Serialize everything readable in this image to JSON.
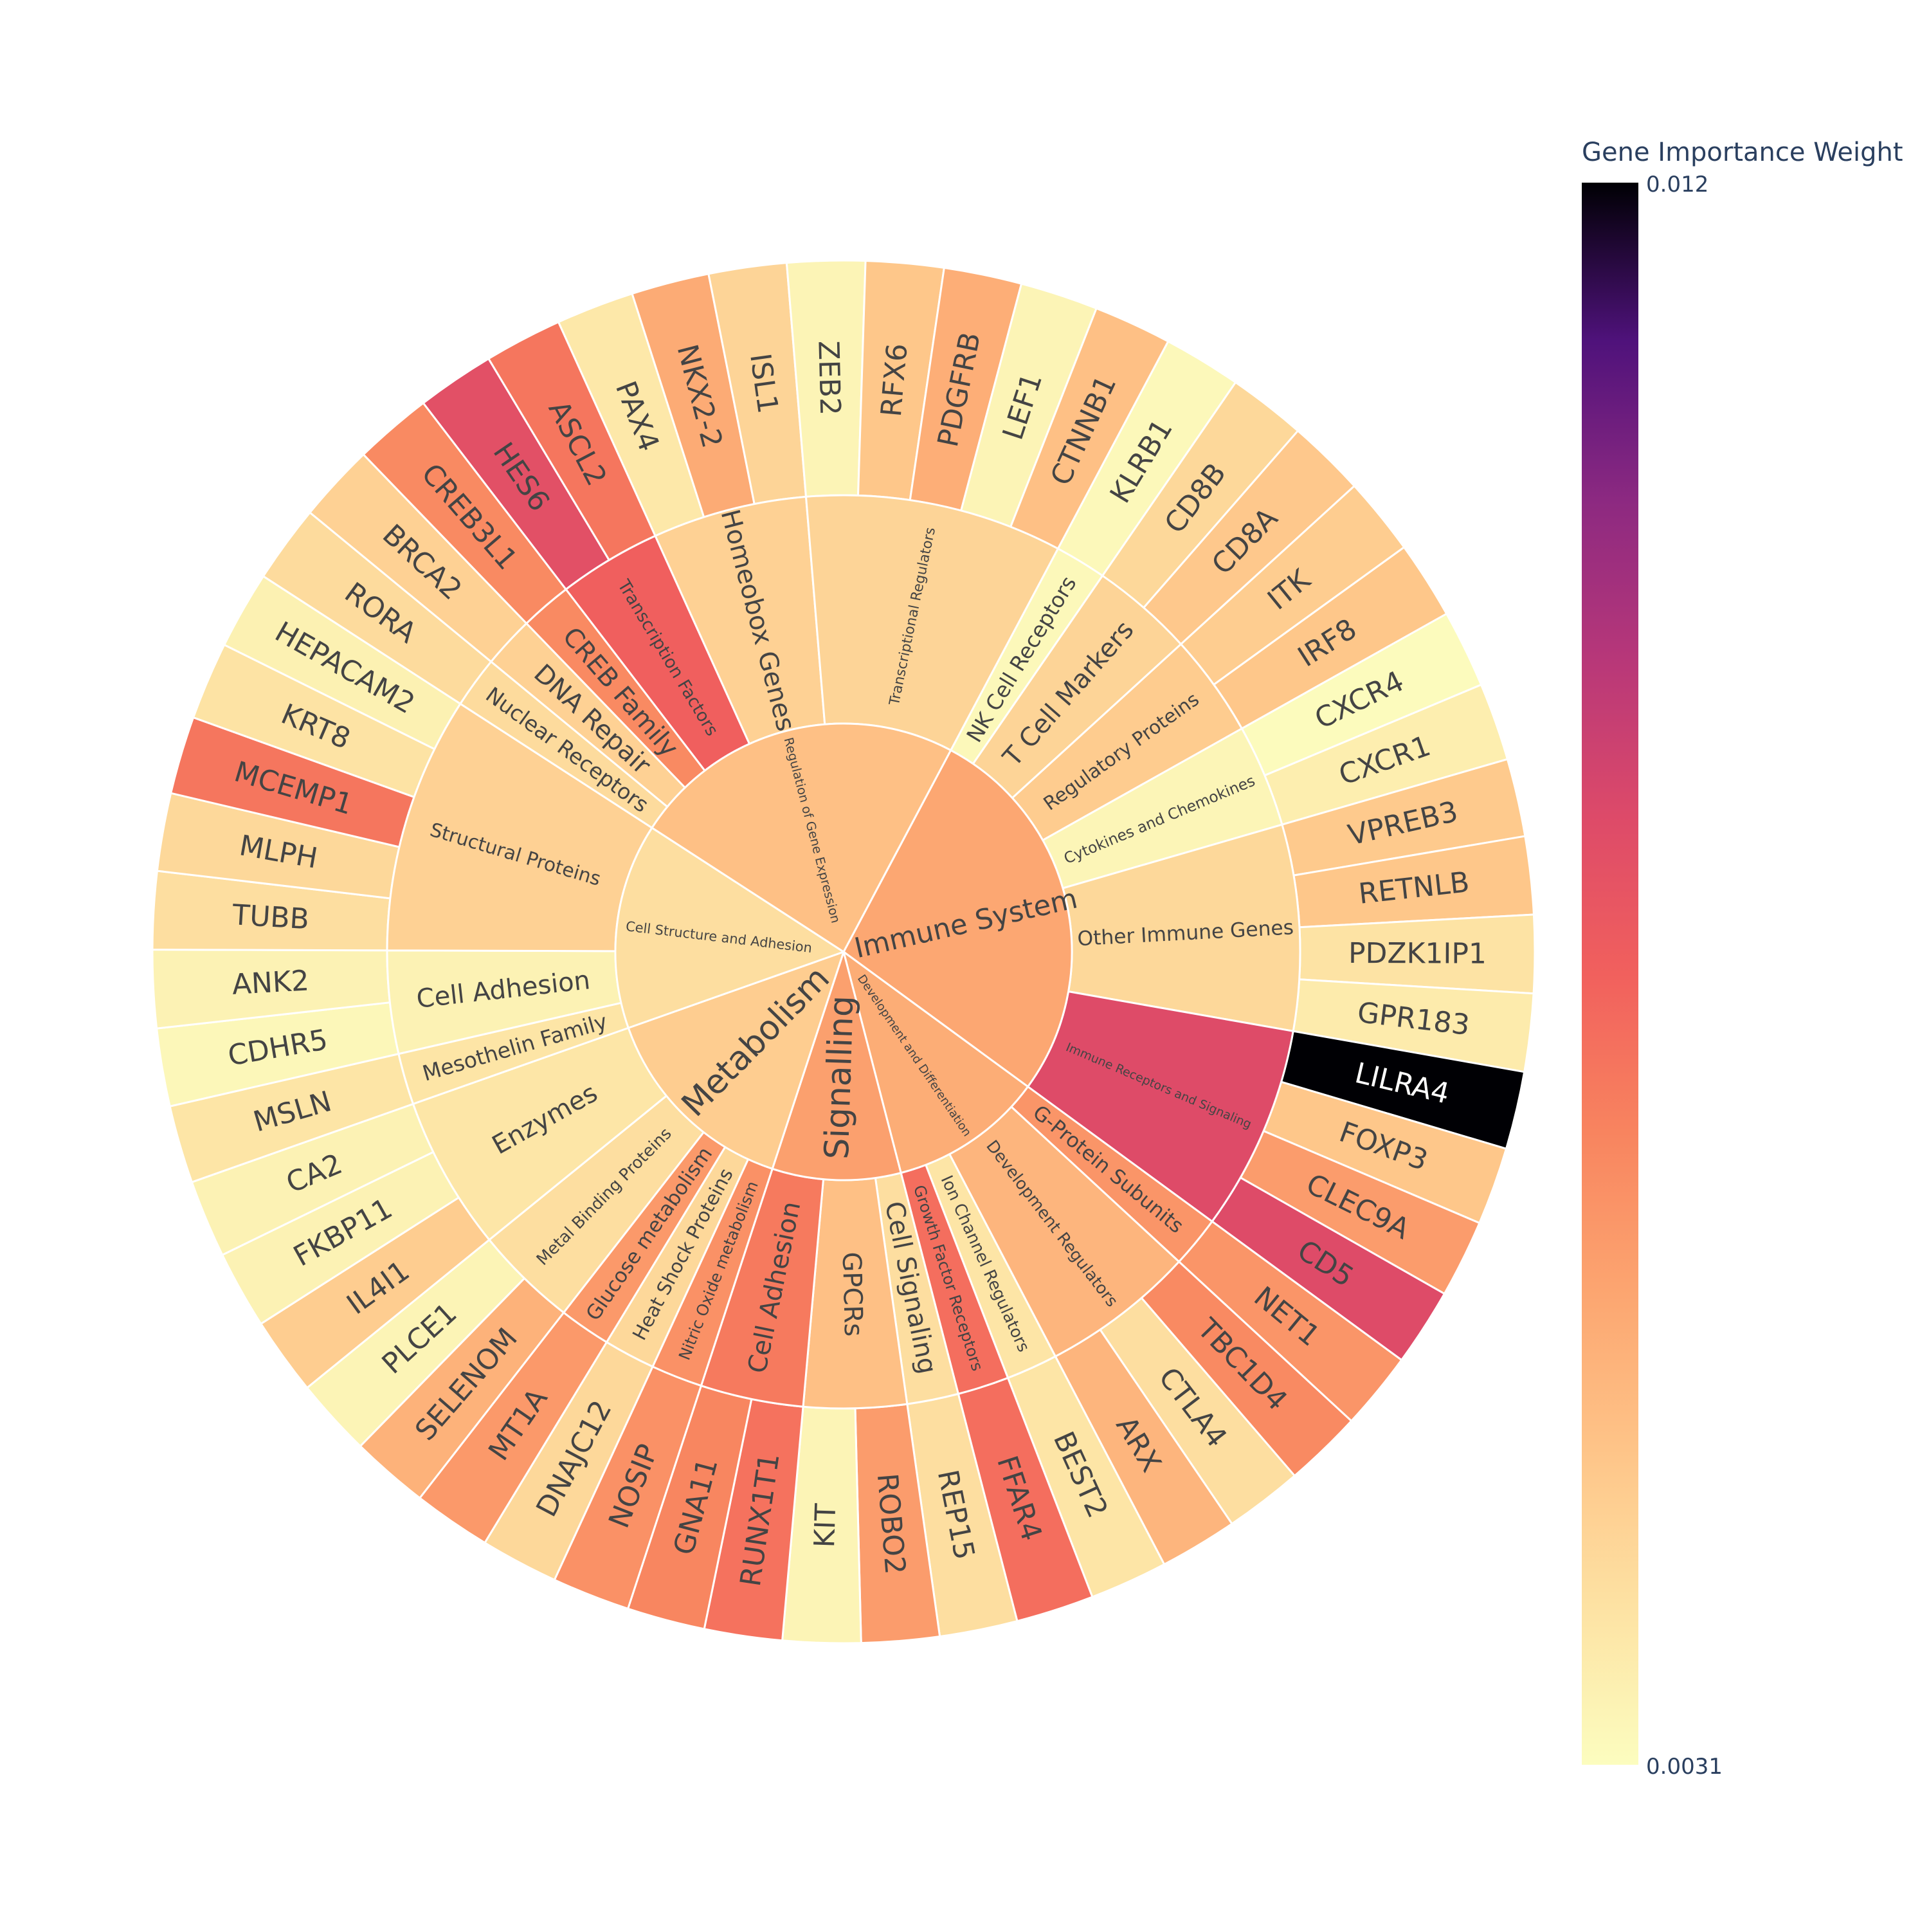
{
  "chart_data": {
    "type": "sunburst",
    "colorbar": {
      "title": "Gene Importance Weight",
      "min": 0.0031,
      "max": 0.012,
      "min_label": "0.0031",
      "max_label": "0.012",
      "colorscale": "magma (reversed)"
    },
    "tree": [
      {
        "name": "Immune System",
        "weight": 0.0057,
        "children": [
          {
            "name": "NK Cell Receptors",
            "weight": 0.00325,
            "genes": [
              {
                "name": "KLRB1",
                "weight": 0.00325
              }
            ]
          },
          {
            "name": "T Cell Markers",
            "weight": 0.0044,
            "genes": [
              {
                "name": "CD8B",
                "weight": 0.0043
              },
              {
                "name": "CD8A",
                "weight": 0.00475
              }
            ]
          },
          {
            "name": "Regulatory Proteins",
            "weight": 0.00465,
            "genes": [
              {
                "name": "ITK",
                "weight": 0.0046
              },
              {
                "name": "IRF8",
                "weight": 0.0048
              }
            ]
          },
          {
            "name": "Cytokines and Chemokines",
            "weight": 0.00335,
            "genes": [
              {
                "name": "CXCR4",
                "weight": 0.00315
              },
              {
                "name": "CXCR1",
                "weight": 0.0036
              }
            ]
          },
          {
            "name": "Other Immune Genes",
            "weight": 0.0043,
            "genes": [
              {
                "name": "VPREB3",
                "weight": 0.0047
              },
              {
                "name": "RETNLB",
                "weight": 0.0048
              },
              {
                "name": "PDZK1IP1",
                "weight": 0.00395
              },
              {
                "name": "GPR183",
                "weight": 0.0037
              }
            ]
          },
          {
            "name": "Immune Receptors and Signaling",
            "weight": 0.0084,
            "genes": [
              {
                "name": "LILRA4",
                "weight": 0.012
              },
              {
                "name": "FOXP3",
                "weight": 0.0048
              },
              {
                "name": "CLEC9A",
                "weight": 0.006
              },
              {
                "name": "CD5",
                "weight": 0.0084
              }
            ]
          }
        ]
      },
      {
        "name": "Development and Differentiation",
        "weight": 0.00555,
        "children": [
          {
            "name": "G-Protein Subunits",
            "weight": 0.0062,
            "genes": [
              {
                "name": "NET1",
                "weight": 0.0062
              }
            ]
          },
          {
            "name": "Development Regulators",
            "weight": 0.0053,
            "genes": [
              {
                "name": "TBC1D4",
                "weight": 0.0065
              },
              {
                "name": "CTLA4",
                "weight": 0.0041
              },
              {
                "name": "ARX",
                "weight": 0.0053
              }
            ]
          },
          {
            "name": "Ion Channel Regulators",
            "weight": 0.0039,
            "genes": [
              {
                "name": "BEST2",
                "weight": 0.0039
              }
            ]
          },
          {
            "name": "Growth Factor Receptors",
            "weight": 0.0072,
            "genes": [
              {
                "name": "FFAR4",
                "weight": 0.0072
              }
            ]
          }
        ]
      },
      {
        "name": "Signalling",
        "weight": 0.0059,
        "children": [
          {
            "name": "Cell Signaling",
            "weight": 0.0041,
            "genes": [
              {
                "name": "REP15",
                "weight": 0.0041
              }
            ]
          },
          {
            "name": "GPCRs",
            "weight": 0.005,
            "genes": [
              {
                "name": "ROBO2",
                "weight": 0.006
              },
              {
                "name": "KIT",
                "weight": 0.0034
              }
            ]
          },
          {
            "name": "Cell Adhesion",
            "weight": 0.0069,
            "genes": [
              {
                "name": "RUNX1T1",
                "weight": 0.0071
              },
              {
                "name": "GNA11",
                "weight": 0.0066
              }
            ]
          }
        ]
      },
      {
        "name": "Metabolism",
        "weight": 0.0046,
        "children": [
          {
            "name": "Nitric Oxide metabolism",
            "weight": 0.0063,
            "genes": [
              {
                "name": "NOSIP",
                "weight": 0.0063
              }
            ]
          },
          {
            "name": "Heat Shock Proteins",
            "weight": 0.0043,
            "genes": [
              {
                "name": "DNAJC12",
                "weight": 0.0043
              }
            ]
          },
          {
            "name": "Glucose metabolism",
            "weight": 0.0061,
            "genes": [
              {
                "name": "MT1A",
                "weight": 0.0061
              }
            ]
          },
          {
            "name": "Metal Binding Proteins",
            "weight": 0.0041,
            "genes": [
              {
                "name": "SELENOM",
                "weight": 0.0054
              },
              {
                "name": "PLCE1",
                "weight": 0.0034
              }
            ]
          },
          {
            "name": "Enzymes",
            "weight": 0.00385,
            "genes": [
              {
                "name": "IL4I1",
                "weight": 0.0046
              },
              {
                "name": "FKBP11",
                "weight": 0.00345
              },
              {
                "name": "CA2",
                "weight": 0.00345
              }
            ]
          }
        ]
      },
      {
        "name": "Cell Structure and Adhesion",
        "weight": 0.0041,
        "children": [
          {
            "name": "Mesothelin Family",
            "weight": 0.0039,
            "genes": [
              {
                "name": "MSLN",
                "weight": 0.0039
              }
            ]
          },
          {
            "name": "Cell Adhesion",
            "weight": 0.00345,
            "genes": [
              {
                "name": "CDHR5",
                "weight": 0.0033
              },
              {
                "name": "ANK2",
                "weight": 0.00345
              }
            ]
          },
          {
            "name": "Structural Proteins",
            "weight": 0.0045,
            "genes": [
              {
                "name": "TUBB",
                "weight": 0.0041
              },
              {
                "name": "MLPH",
                "weight": 0.0043
              },
              {
                "name": "MCEMP1",
                "weight": 0.007
              },
              {
                "name": "KRT8",
                "weight": 0.00395
              },
              {
                "name": "HEPACAM2",
                "weight": 0.0035
              }
            ]
          }
        ]
      },
      {
        "name": "Regulation of Gene Expression",
        "weight": 0.005,
        "children": [
          {
            "name": "Nuclear Receptors",
            "weight": 0.0042,
            "genes": [
              {
                "name": "RORA",
                "weight": 0.0042
              }
            ]
          },
          {
            "name": "DNA Repair",
            "weight": 0.0045,
            "genes": [
              {
                "name": "BRCA2",
                "weight": 0.0045
              }
            ]
          },
          {
            "name": "CREB Family",
            "weight": 0.0065,
            "genes": [
              {
                "name": "CREB3L1",
                "weight": 0.0065
              }
            ]
          },
          {
            "name": "Transcription Factors",
            "weight": 0.0076,
            "genes": [
              {
                "name": "HES6",
                "weight": 0.0082
              },
              {
                "name": "ASCL2",
                "weight": 0.007
              }
            ]
          },
          {
            "name": "Homeobox Genes",
            "weight": 0.0045,
            "genes": [
              {
                "name": "PAX4",
                "weight": 0.0038
              },
              {
                "name": "NKX2-2",
                "weight": 0.0056
              },
              {
                "name": "ISL1",
                "weight": 0.0044
              }
            ]
          },
          {
            "name": "Transcriptional Regulators",
            "weight": 0.0044,
            "genes": [
              {
                "name": "ZEB2",
                "weight": 0.0034
              },
              {
                "name": "RFX6",
                "weight": 0.0048
              },
              {
                "name": "PDGFRB",
                "weight": 0.0055
              },
              {
                "name": "LEF1",
                "weight": 0.0034
              },
              {
                "name": "CTNNB1",
                "weight": 0.005
              }
            ]
          }
        ]
      }
    ]
  }
}
